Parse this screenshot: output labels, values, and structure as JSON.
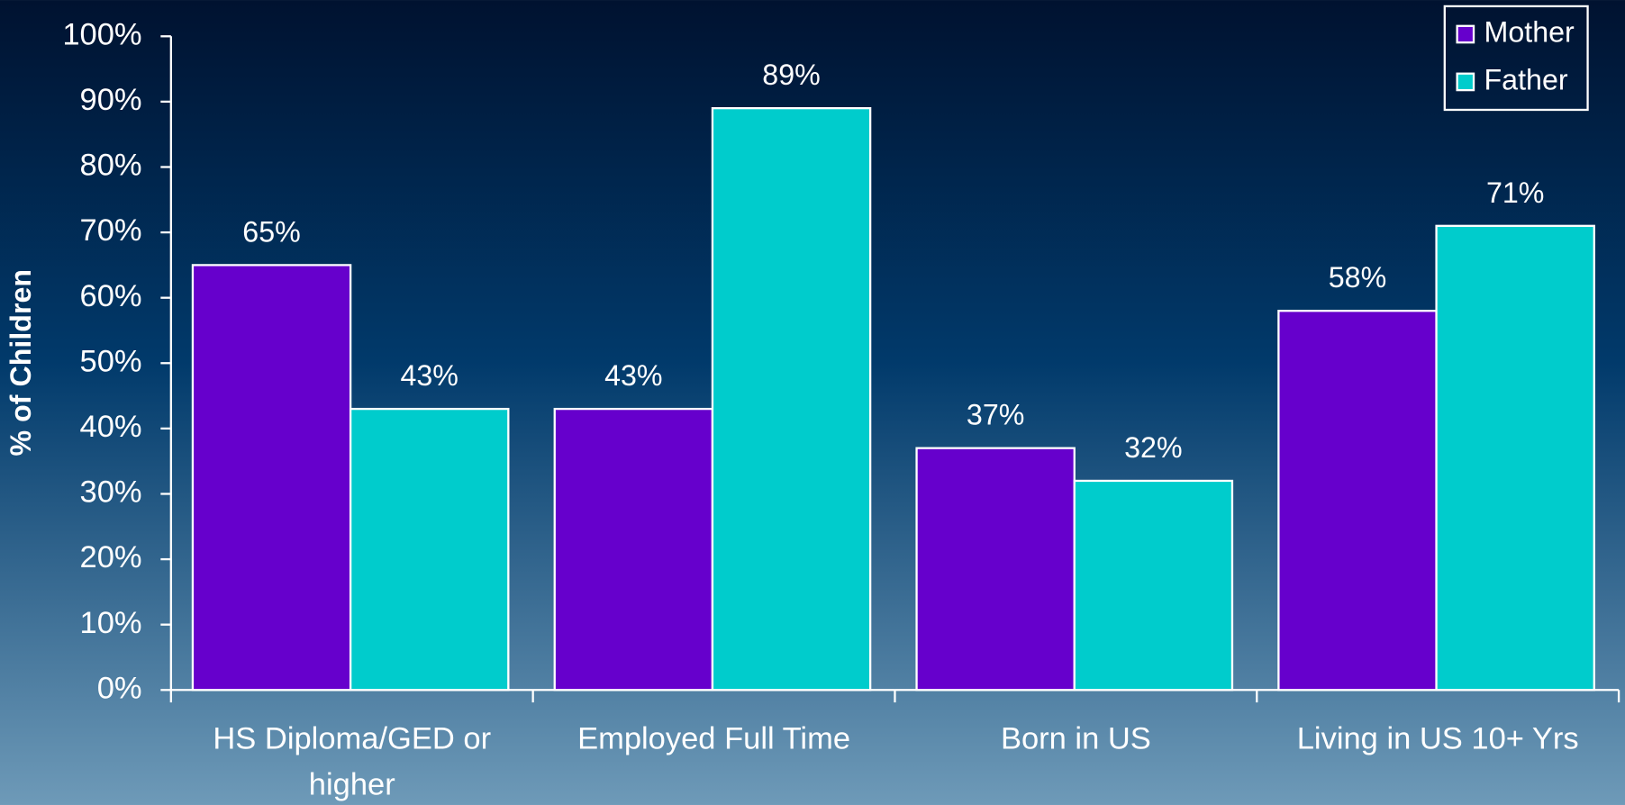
{
  "chart_data": {
    "type": "bar",
    "y_label": "% of Children",
    "categories": [
      "HS Diploma/GED or higher",
      "Employed Full Time",
      "Born in US",
      "Living in US 10+ Yrs"
    ],
    "series": [
      {
        "name": "Mother",
        "color": "#6600cc",
        "values": [
          65,
          43,
          37,
          58
        ],
        "value_labels": [
          "65%",
          "43%",
          "37%",
          "58%"
        ]
      },
      {
        "name": "Father",
        "color": "#00cccc",
        "values": [
          43,
          89,
          32,
          71
        ],
        "value_labels": [
          "43%",
          "89%",
          "32%",
          "71%"
        ]
      }
    ],
    "ylim": [
      0,
      100
    ],
    "yticks": [
      {
        "value": 0,
        "label": "0%"
      },
      {
        "value": 10,
        "label": "10%"
      },
      {
        "value": 20,
        "label": "20%"
      },
      {
        "value": 30,
        "label": "30%"
      },
      {
        "value": 40,
        "label": "40%"
      },
      {
        "value": 50,
        "label": "50%"
      },
      {
        "value": 60,
        "label": "60%"
      },
      {
        "value": 70,
        "label": "70%"
      },
      {
        "value": 80,
        "label": "80%"
      },
      {
        "value": 90,
        "label": "90%"
      },
      {
        "value": 100,
        "label": "100%"
      }
    ],
    "legend": "upper right"
  }
}
